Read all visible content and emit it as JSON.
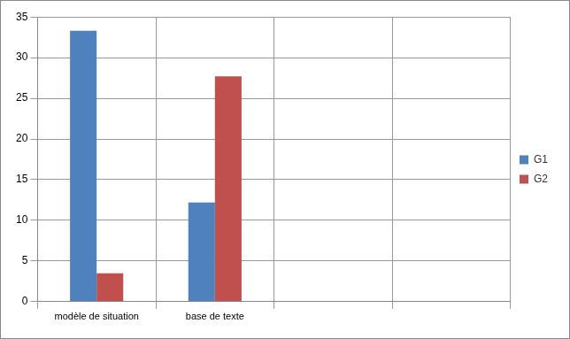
{
  "chart_data": {
    "type": "bar",
    "categories": [
      "modèle de situation",
      "base de texte",
      null,
      null
    ],
    "series": [
      {
        "name": "G1",
        "color": "#4f81bd",
        "values": [
          33.3,
          12.2,
          null,
          null
        ]
      },
      {
        "name": "G2",
        "color": "#c0504d",
        "values": [
          3.5,
          27.7,
          null,
          null
        ]
      }
    ],
    "ylim": [
      0,
      35
    ],
    "yticks": [
      0,
      5,
      10,
      15,
      20,
      25,
      30,
      35
    ],
    "grid": true,
    "legend": "right"
  }
}
